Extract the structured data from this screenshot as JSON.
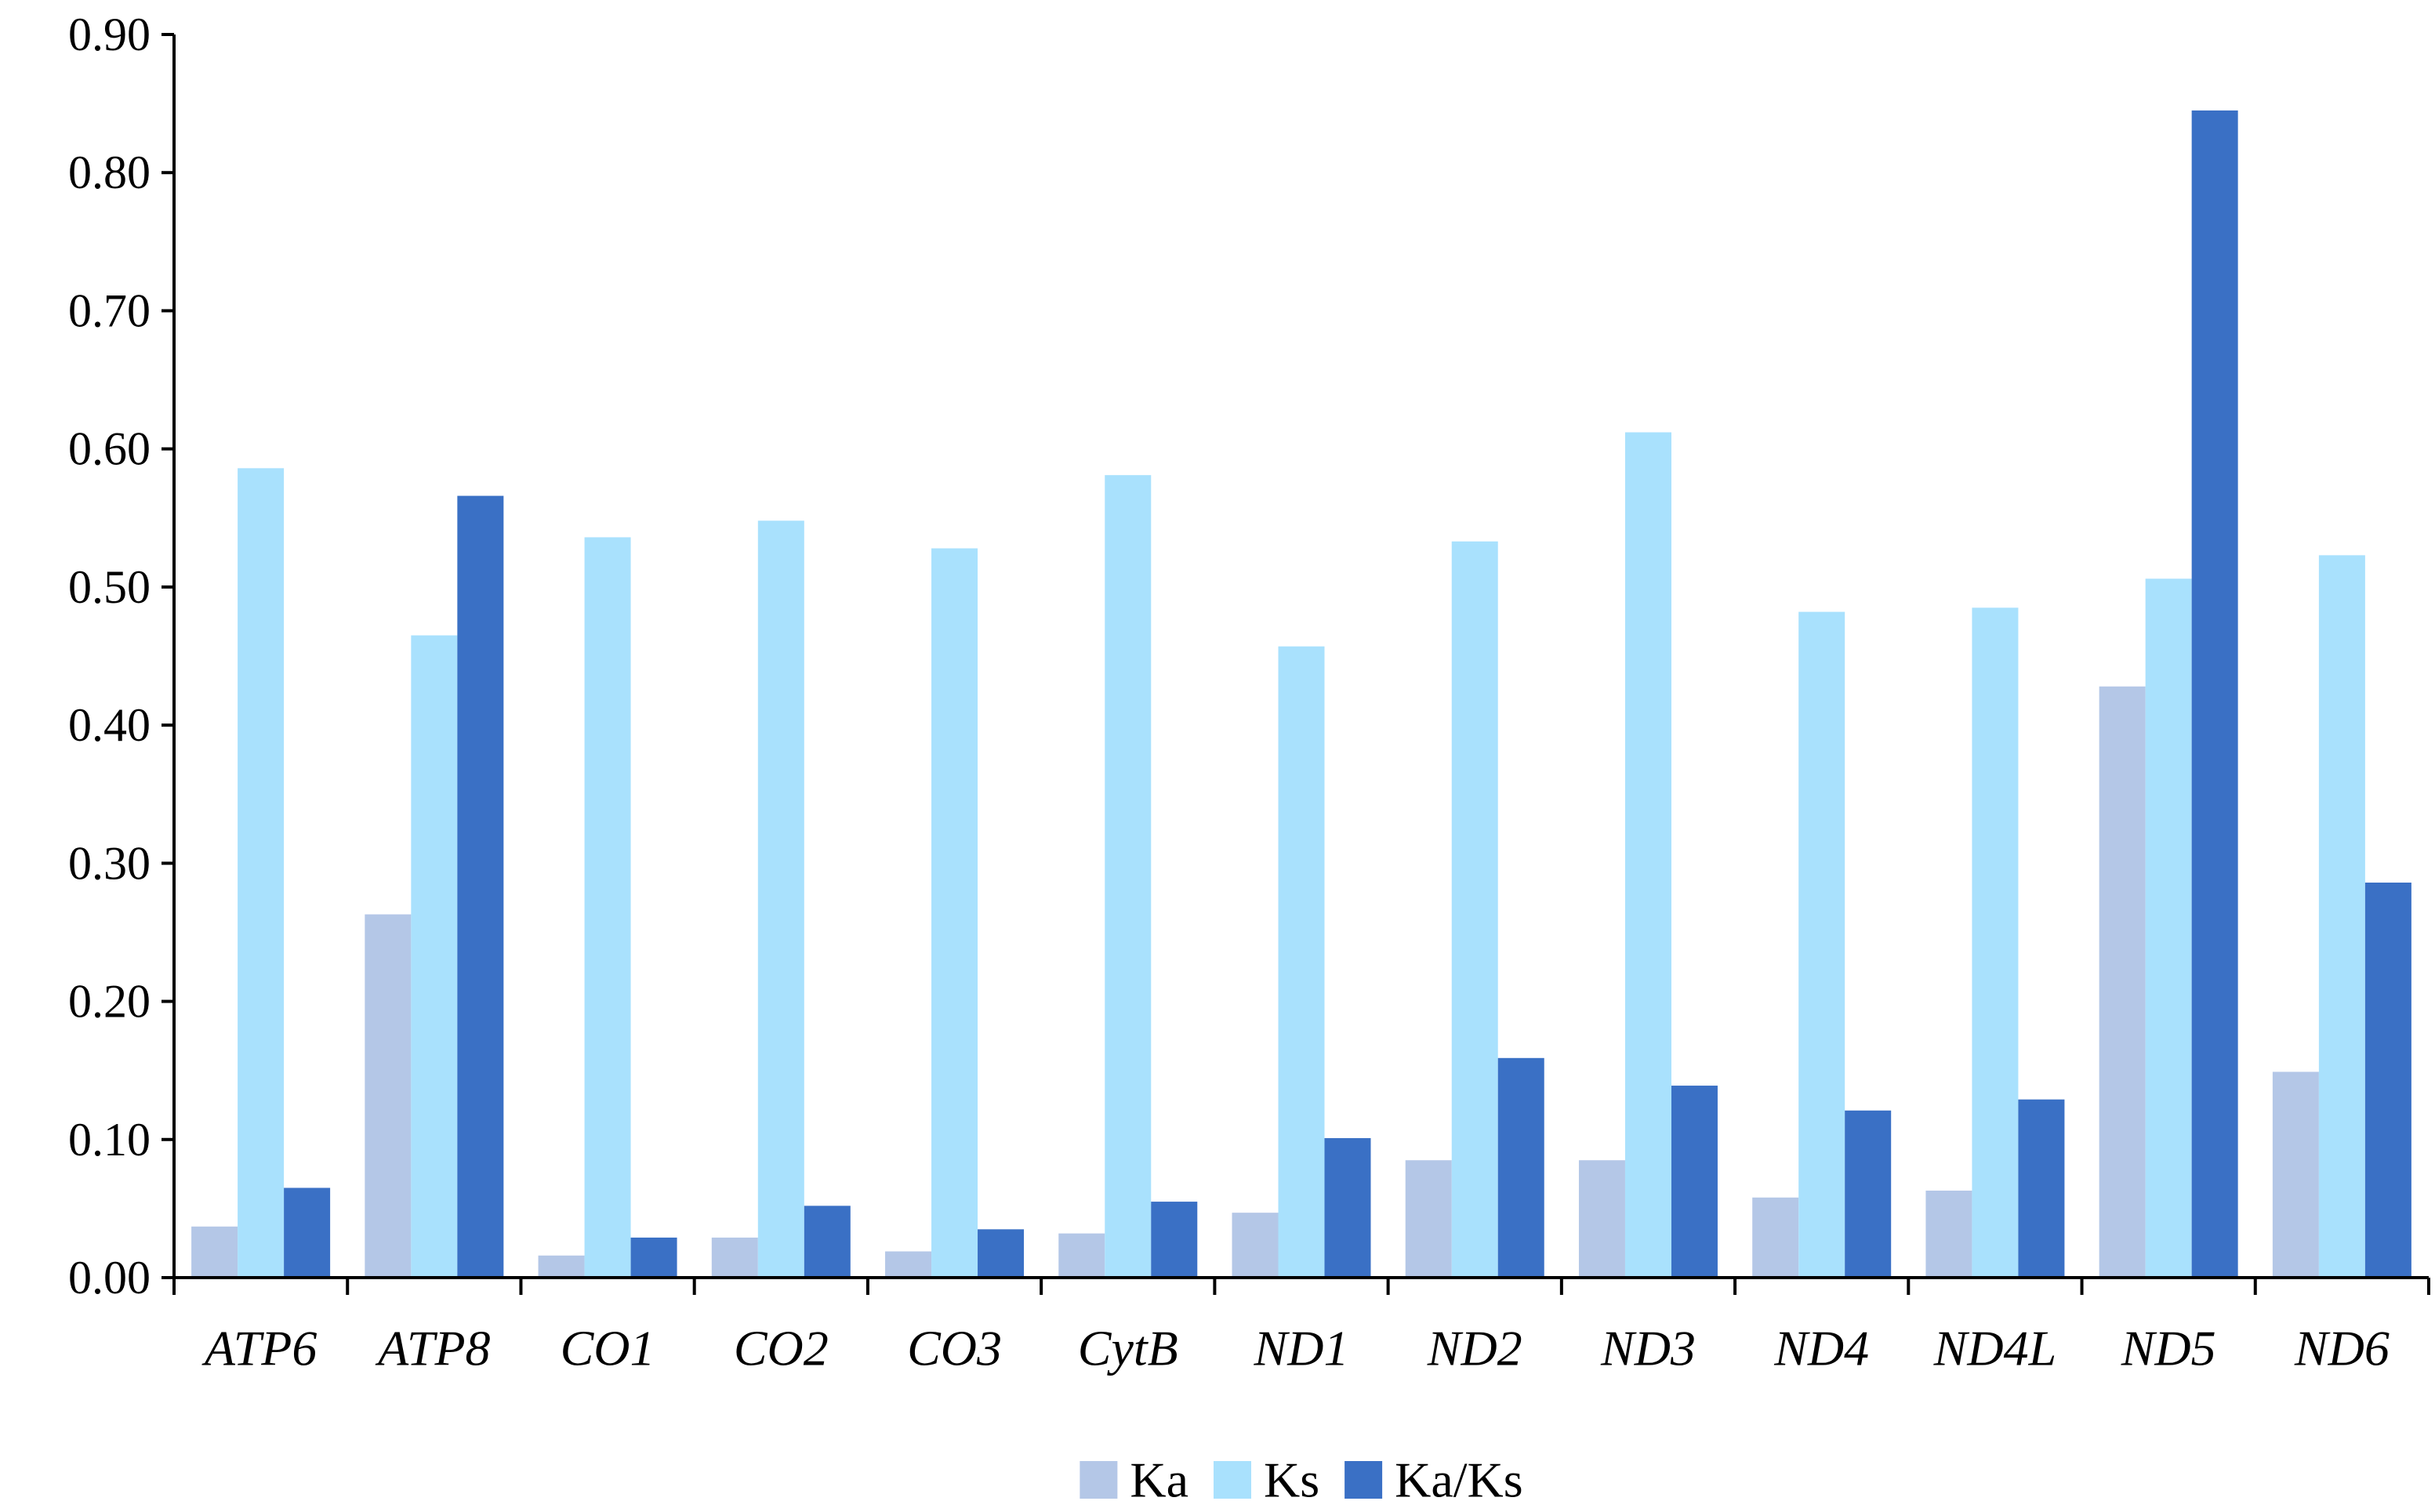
{
  "chart_data": {
    "type": "bar",
    "title": "",
    "xlabel": "",
    "ylabel": "",
    "categories": [
      "ATP6",
      "ATP8",
      "CO1",
      "CO2",
      "CO3",
      "CytB",
      "ND1",
      "ND2",
      "ND3",
      "ND4",
      "ND4L",
      "ND5",
      "ND6"
    ],
    "series": [
      {
        "name": "Ka",
        "color": "#b4c7e7",
        "values": [
          0.037,
          0.263,
          0.016,
          0.029,
          0.019,
          0.032,
          0.047,
          0.085,
          0.085,
          0.058,
          0.063,
          0.428,
          0.149
        ]
      },
      {
        "name": "Ks",
        "color": "#a9e1fd",
        "values": [
          0.586,
          0.465,
          0.536,
          0.548,
          0.528,
          0.581,
          0.457,
          0.533,
          0.612,
          0.482,
          0.485,
          0.506,
          0.523
        ]
      },
      {
        "name": "Ka/Ks",
        "color": "#3a70c5",
        "values": [
          0.065,
          0.566,
          0.029,
          0.052,
          0.035,
          0.055,
          0.101,
          0.159,
          0.139,
          0.121,
          0.129,
          0.845,
          0.286
        ]
      }
    ],
    "ylim": [
      0,
      0.9
    ],
    "yticks": [
      "0.00",
      "0.10",
      "0.20",
      "0.30",
      "0.40",
      "0.50",
      "0.60",
      "0.70",
      "0.80",
      "0.90"
    ],
    "grid": false,
    "legend_position": "bottom-center"
  }
}
